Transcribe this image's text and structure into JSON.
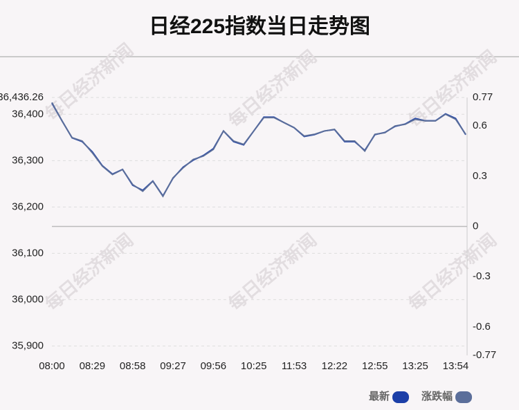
{
  "chart_data": {
    "type": "line",
    "title": "日经225指数当日走势图",
    "watermark": "每日经济新闻",
    "categories": [
      "08:00",
      null,
      null,
      null,
      "08:29",
      null,
      null,
      null,
      "08:58",
      null,
      null,
      null,
      "09:27",
      null,
      null,
      null,
      "09:56",
      null,
      null,
      null,
      "10:25",
      null,
      null,
      null,
      "11:53",
      null,
      null,
      null,
      "12:22",
      null,
      null,
      null,
      "12:55",
      null,
      null,
      null,
      "13:25",
      null,
      null,
      null,
      "13:54",
      null
    ],
    "series": [
      {
        "name": "最新",
        "color": "#1c3fa8",
        "values": [
          36424,
          36386,
          36349,
          36341,
          36319,
          36289,
          36271,
          36281,
          36247,
          36236,
          36256,
          36224,
          36262,
          36286,
          36301,
          36311,
          36326,
          36364,
          36341,
          36334,
          36364,
          36394,
          36394,
          36382,
          36371,
          36352,
          36356,
          36364,
          36367,
          36341,
          36341,
          36322,
          36356,
          36361,
          36374,
          36379,
          36391,
          36386,
          36386,
          36401,
          36391,
          36356
        ]
      },
      {
        "name": "涨跌幅",
        "color": "#5b6e9a",
        "axis": "y2",
        "values": [
          0.74,
          0.63,
          0.53,
          0.51,
          0.44,
          0.36,
          0.31,
          0.34,
          0.25,
          0.21,
          0.27,
          0.18,
          0.29,
          0.35,
          0.4,
          0.42,
          0.46,
          0.57,
          0.51,
          0.49,
          0.57,
          0.65,
          0.65,
          0.62,
          0.59,
          0.54,
          0.55,
          0.57,
          0.58,
          0.51,
          0.51,
          0.45,
          0.55,
          0.56,
          0.6,
          0.61,
          0.64,
          0.63,
          0.63,
          0.67,
          0.64,
          0.55
        ]
      }
    ],
    "ylim": [
      35879.7,
      36436.26
    ],
    "yticks": [
      {
        "value": 36436.26,
        "label": "36,436.26"
      },
      {
        "value": 36400,
        "label": "36,400"
      },
      {
        "value": 36300,
        "label": "36,300"
      },
      {
        "value": 36200,
        "label": "36,200"
      },
      {
        "value": 36100,
        "label": "36,100"
      },
      {
        "value": 36000,
        "label": "36,000"
      },
      {
        "value": 35900,
        "label": "35,900"
      }
    ],
    "y2lim": [
      -0.77,
      0.77
    ],
    "y2ticks": [
      0.77,
      0.6,
      0.3,
      0,
      -0.3,
      -0.6,
      -0.77
    ],
    "grid": true,
    "legend": "bottom-right"
  }
}
